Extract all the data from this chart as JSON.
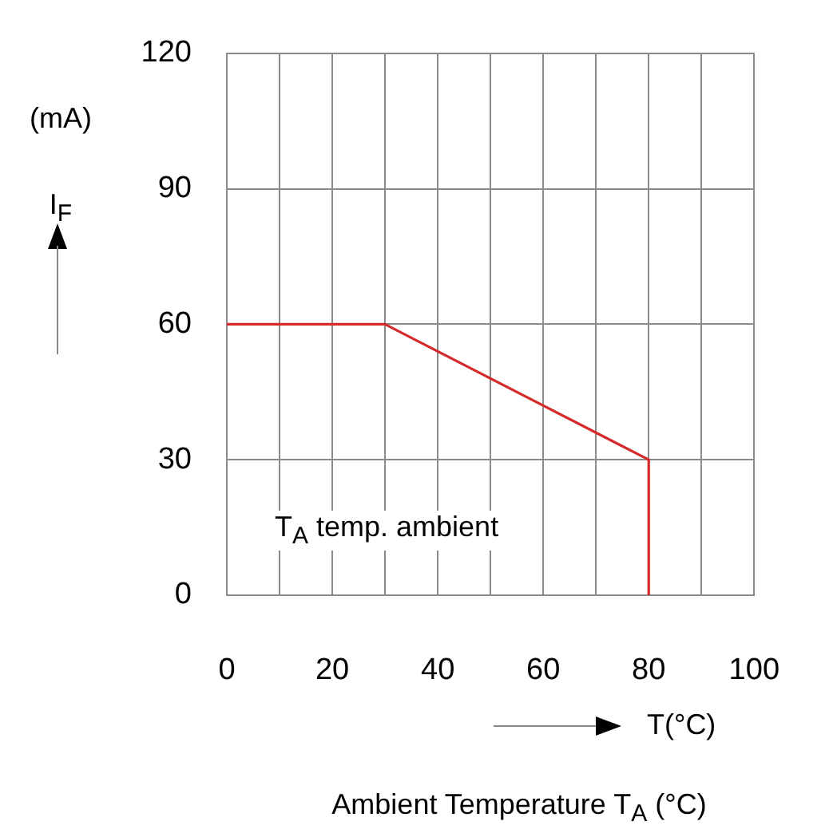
{
  "chart_data": {
    "type": "line",
    "x": [
      0,
      30,
      80,
      80
    ],
    "series": [
      {
        "color": "#d42a2a",
        "values": [
          60,
          60,
          30,
          0
        ]
      }
    ],
    "xlim": [
      0,
      100
    ],
    "ylim": [
      0,
      120
    ],
    "xticks": [
      0,
      {
        "value": 10,
        "label": null
      },
      20,
      {
        "value": 30,
        "label": null
      },
      40,
      {
        "value": 50,
        "label": null
      },
      60,
      {
        "value": 70,
        "label": null
      },
      80,
      {
        "value": 90,
        "label": null
      },
      100
    ],
    "yticks": [
      0,
      30,
      60,
      90,
      120
    ],
    "xlabel": "T(°C)",
    "ylabel": "(mA) I$_{F}$",
    "annotations": [
      "T$_{A}$ temp. ambient",
      "Ambient Temperature T$_{A}$ (°C)"
    ],
    "grid": true,
    "legend": false,
    "marker": "none",
    "line_style": "solid"
  }
}
